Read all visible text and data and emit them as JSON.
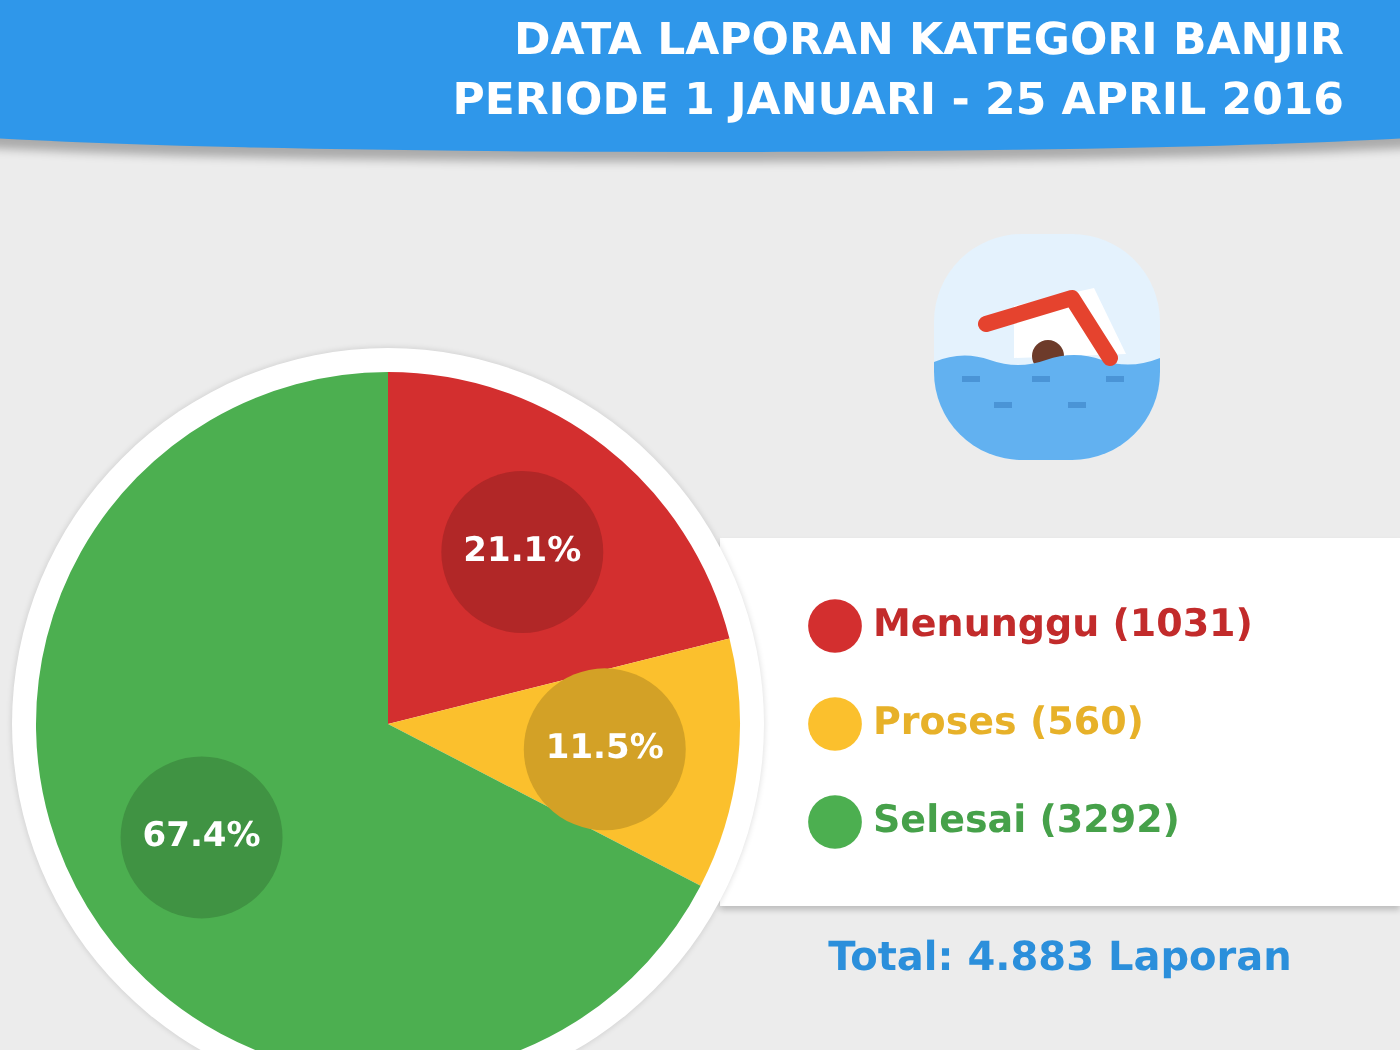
{
  "chart_data": {
    "type": "pie",
    "title": "DATA LAPORAN KATEGORI BANJIR",
    "subtitle": "PERIODE 1 JANUARI - 25 APRIL 2016",
    "categories": [
      "Menunggu (1031)",
      "Proses (560)",
      "Selesai (3292)"
    ],
    "values": [
      21.1,
      11.5,
      67.4
    ],
    "colors": [
      "#d32f2f",
      "#fbc02d",
      "#4caf50"
    ],
    "value_labels": [
      "21.1%",
      "11.5%",
      "67.4%"
    ],
    "legend": "right",
    "annotations": [
      "Total: 4.883 Laporan"
    ]
  }
}
